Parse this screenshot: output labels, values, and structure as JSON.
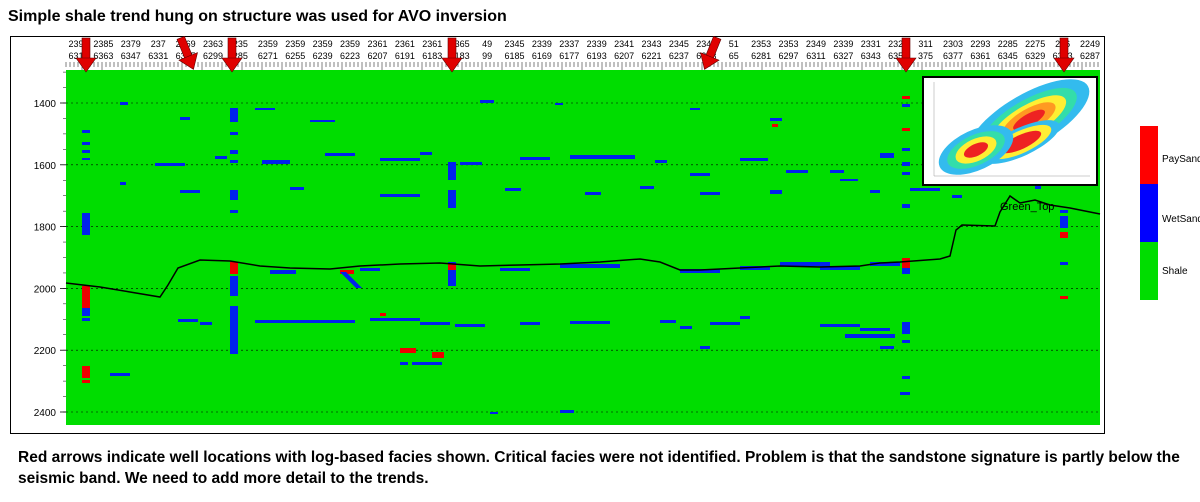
{
  "title": "Simple shale trend  hung on structure was used for AVO inversion",
  "caption": "Red arrows indicate well locations with log-based facies shown. Critical facies were not identified. Problem is that the sandstone signature is partly below the seismic band. We need to add more detail to the trends.",
  "axis": {
    "top_row1": [
      "239",
      "2385",
      "2379",
      "237",
      "2369",
      "2363",
      "235",
      "2359",
      "2359",
      "2359",
      "2359",
      "2361",
      "2361",
      "2361",
      "2365",
      "49",
      "2345",
      "2339",
      "2337",
      "2339",
      "2341",
      "2343",
      "2345",
      "2347",
      "51",
      "2353",
      "2353",
      "2349",
      "2339",
      "2331",
      "2322",
      "311",
      "2303",
      "2293",
      "2285",
      "2275",
      "226",
      "2249"
    ],
    "top_row2": [
      "631",
      "6363",
      "6347",
      "6331",
      "6315",
      "6299",
      "285",
      "6271",
      "6255",
      "6239",
      "6223",
      "6207",
      "6191",
      "6183",
      "6183",
      "99",
      "6185",
      "6169",
      "6177",
      "6193",
      "6207",
      "6221",
      "6237",
      "6253",
      "65",
      "6281",
      "6297",
      "6311",
      "6327",
      "6343",
      "6359",
      "375",
      "6377",
      "6361",
      "6345",
      "6329",
      "6313",
      "6287"
    ],
    "depth_ticks": [
      "1400",
      "1600",
      "1800",
      "2000",
      "2200",
      "2400"
    ]
  },
  "horizon_label": "Green_Top",
  "legend": {
    "items": [
      {
        "label": "PaySand",
        "color": "#ff0000"
      },
      {
        "label": "WetSand",
        "color": "#0000ff"
      },
      {
        "label": "Shale",
        "color": "#00dd00"
      }
    ]
  },
  "colors": {
    "shale": "#00dd00",
    "wet": "#0022ee",
    "pay": "#ee0000",
    "arrow": "#e00000"
  }
}
